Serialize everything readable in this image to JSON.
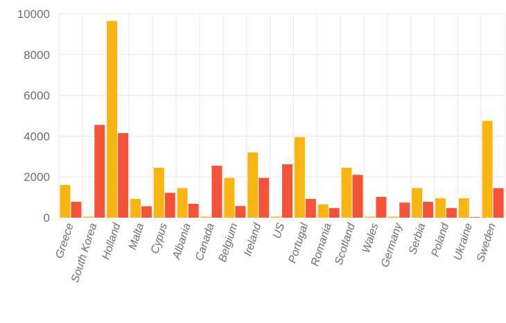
{
  "chart_data": {
    "type": "bar",
    "title": "",
    "xlabel": "",
    "ylabel": "",
    "ylim": [
      0,
      10000
    ],
    "yticks": [
      0,
      2000,
      4000,
      6000,
      8000,
      10000
    ],
    "grid": true,
    "legend": "none",
    "colors": [
      "#f8b513",
      "#f4543a"
    ],
    "categories": [
      "Greece",
      "South Korea",
      "Holland",
      "Malta",
      "Cypus",
      "Albania",
      "Canada",
      "Belgium",
      "Ireland",
      "US",
      "Portugal",
      "Romania",
      "Scotland",
      "Wales",
      "Germany",
      "Serbia",
      "Poland",
      "Ukraine",
      "Sweden"
    ],
    "series": [
      {
        "values": [
          1600,
          0,
          9650,
          920,
          2450,
          1450,
          0,
          1950,
          3200,
          0,
          3950,
          650,
          2450,
          0,
          0,
          1450,
          950,
          950,
          4750
        ]
      },
      {
        "values": [
          780,
          4550,
          4150,
          560,
          1220,
          680,
          2550,
          570,
          1950,
          2620,
          920,
          470,
          2100,
          1020,
          740,
          780,
          470,
          30,
          1450
        ]
      }
    ]
  }
}
